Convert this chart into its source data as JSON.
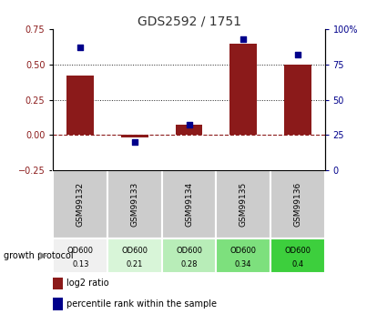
{
  "title": "GDS2592 / 1751",
  "samples": [
    "GSM99132",
    "GSM99133",
    "GSM99134",
    "GSM99135",
    "GSM99136"
  ],
  "log2_ratio": [
    0.42,
    -0.02,
    0.07,
    0.65,
    0.5
  ],
  "percentile_rank": [
    87,
    20,
    32,
    93,
    82
  ],
  "ylim_left": [
    -0.25,
    0.75
  ],
  "ylim_right": [
    0,
    100
  ],
  "yticks_left": [
    -0.25,
    0.0,
    0.25,
    0.5,
    0.75
  ],
  "yticks_right": [
    0,
    25,
    50,
    75,
    100
  ],
  "bar_color": "#8B1A1A",
  "dot_color": "#00008B",
  "hline_color": "#8B1A1A",
  "dot_line_color": "#222222",
  "growth_protocol_label": "growth protocol",
  "od600_labels": [
    "OD600",
    "OD600",
    "OD600",
    "OD600",
    "OD600"
  ],
  "od600_values": [
    "0.13",
    "0.21",
    "0.28",
    "0.34",
    "0.4"
  ],
  "cell_colors": [
    "#f0f0f0",
    "#d8f5d8",
    "#b8edb8",
    "#7de07d",
    "#3dcf3d"
  ],
  "sample_bg_color": "#cccccc",
  "legend_entries": [
    "log2 ratio",
    "percentile rank within the sample"
  ],
  "legend_colors": [
    "#8B1A1A",
    "#00008B"
  ]
}
